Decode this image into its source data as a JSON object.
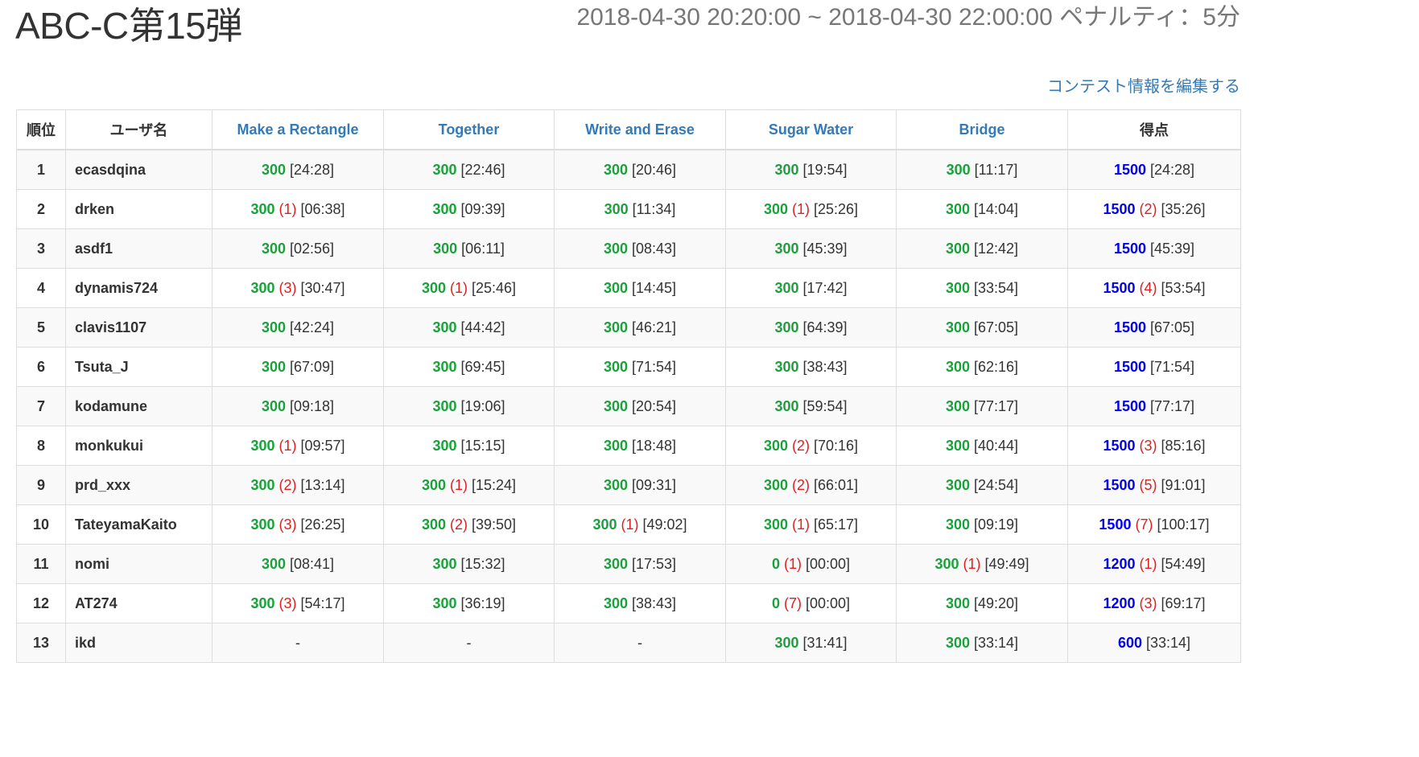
{
  "contest": {
    "title": "ABC-C第15弾",
    "period": "2018-04-30 20:20:00 ~ 2018-04-30 22:00:00 ペナルティ：5分",
    "edit_link": "コンテスト情報を編集する"
  },
  "table": {
    "headers": {
      "rank": "順位",
      "user": "ユーザ名",
      "problems": [
        "Make a Rectangle",
        "Together",
        "Write and Erase",
        "Sugar Water",
        "Bridge"
      ],
      "total": "得点"
    },
    "rows": [
      {
        "rank": "1",
        "user": "ecasdqina",
        "cells": [
          {
            "score": "300",
            "pen": "",
            "time": "[24:28]"
          },
          {
            "score": "300",
            "pen": "",
            "time": "[22:46]"
          },
          {
            "score": "300",
            "pen": "",
            "time": "[20:46]"
          },
          {
            "score": "300",
            "pen": "",
            "time": "[19:54]"
          },
          {
            "score": "300",
            "pen": "",
            "time": "[11:17]"
          }
        ],
        "total": {
          "score": "1500",
          "pen": "",
          "time": "[24:28]"
        }
      },
      {
        "rank": "2",
        "user": "drken",
        "cells": [
          {
            "score": "300",
            "pen": "(1)",
            "time": "[06:38]"
          },
          {
            "score": "300",
            "pen": "",
            "time": "[09:39]"
          },
          {
            "score": "300",
            "pen": "",
            "time": "[11:34]"
          },
          {
            "score": "300",
            "pen": "(1)",
            "time": "[25:26]"
          },
          {
            "score": "300",
            "pen": "",
            "time": "[14:04]"
          }
        ],
        "total": {
          "score": "1500",
          "pen": "(2)",
          "time": "[35:26]"
        }
      },
      {
        "rank": "3",
        "user": "asdf1",
        "cells": [
          {
            "score": "300",
            "pen": "",
            "time": "[02:56]"
          },
          {
            "score": "300",
            "pen": "",
            "time": "[06:11]"
          },
          {
            "score": "300",
            "pen": "",
            "time": "[08:43]"
          },
          {
            "score": "300",
            "pen": "",
            "time": "[45:39]"
          },
          {
            "score": "300",
            "pen": "",
            "time": "[12:42]"
          }
        ],
        "total": {
          "score": "1500",
          "pen": "",
          "time": "[45:39]"
        }
      },
      {
        "rank": "4",
        "user": "dynamis724",
        "cells": [
          {
            "score": "300",
            "pen": "(3)",
            "time": "[30:47]"
          },
          {
            "score": "300",
            "pen": "(1)",
            "time": "[25:46]"
          },
          {
            "score": "300",
            "pen": "",
            "time": "[14:45]"
          },
          {
            "score": "300",
            "pen": "",
            "time": "[17:42]"
          },
          {
            "score": "300",
            "pen": "",
            "time": "[33:54]"
          }
        ],
        "total": {
          "score": "1500",
          "pen": "(4)",
          "time": "[53:54]"
        }
      },
      {
        "rank": "5",
        "user": "clavis1107",
        "cells": [
          {
            "score": "300",
            "pen": "",
            "time": "[42:24]"
          },
          {
            "score": "300",
            "pen": "",
            "time": "[44:42]"
          },
          {
            "score": "300",
            "pen": "",
            "time": "[46:21]"
          },
          {
            "score": "300",
            "pen": "",
            "time": "[64:39]"
          },
          {
            "score": "300",
            "pen": "",
            "time": "[67:05]"
          }
        ],
        "total": {
          "score": "1500",
          "pen": "",
          "time": "[67:05]"
        }
      },
      {
        "rank": "6",
        "user": "Tsuta_J",
        "cells": [
          {
            "score": "300",
            "pen": "",
            "time": "[67:09]"
          },
          {
            "score": "300",
            "pen": "",
            "time": "[69:45]"
          },
          {
            "score": "300",
            "pen": "",
            "time": "[71:54]"
          },
          {
            "score": "300",
            "pen": "",
            "time": "[38:43]"
          },
          {
            "score": "300",
            "pen": "",
            "time": "[62:16]"
          }
        ],
        "total": {
          "score": "1500",
          "pen": "",
          "time": "[71:54]"
        }
      },
      {
        "rank": "7",
        "user": "kodamune",
        "cells": [
          {
            "score": "300",
            "pen": "",
            "time": "[09:18]"
          },
          {
            "score": "300",
            "pen": "",
            "time": "[19:06]"
          },
          {
            "score": "300",
            "pen": "",
            "time": "[20:54]"
          },
          {
            "score": "300",
            "pen": "",
            "time": "[59:54]"
          },
          {
            "score": "300",
            "pen": "",
            "time": "[77:17]"
          }
        ],
        "total": {
          "score": "1500",
          "pen": "",
          "time": "[77:17]"
        }
      },
      {
        "rank": "8",
        "user": "monkukui",
        "cells": [
          {
            "score": "300",
            "pen": "(1)",
            "time": "[09:57]"
          },
          {
            "score": "300",
            "pen": "",
            "time": "[15:15]"
          },
          {
            "score": "300",
            "pen": "",
            "time": "[18:48]"
          },
          {
            "score": "300",
            "pen": "(2)",
            "time": "[70:16]"
          },
          {
            "score": "300",
            "pen": "",
            "time": "[40:44]"
          }
        ],
        "total": {
          "score": "1500",
          "pen": "(3)",
          "time": "[85:16]"
        }
      },
      {
        "rank": "9",
        "user": "prd_xxx",
        "cells": [
          {
            "score": "300",
            "pen": "(2)",
            "time": "[13:14]"
          },
          {
            "score": "300",
            "pen": "(1)",
            "time": "[15:24]"
          },
          {
            "score": "300",
            "pen": "",
            "time": "[09:31]"
          },
          {
            "score": "300",
            "pen": "(2)",
            "time": "[66:01]"
          },
          {
            "score": "300",
            "pen": "",
            "time": "[24:54]"
          }
        ],
        "total": {
          "score": "1500",
          "pen": "(5)",
          "time": "[91:01]"
        }
      },
      {
        "rank": "10",
        "user": "TateyamaKaito",
        "cells": [
          {
            "score": "300",
            "pen": "(3)",
            "time": "[26:25]"
          },
          {
            "score": "300",
            "pen": "(2)",
            "time": "[39:50]"
          },
          {
            "score": "300",
            "pen": "(1)",
            "time": "[49:02]"
          },
          {
            "score": "300",
            "pen": "(1)",
            "time": "[65:17]"
          },
          {
            "score": "300",
            "pen": "",
            "time": "[09:19]"
          }
        ],
        "total": {
          "score": "1500",
          "pen": "(7)",
          "time": "[100:17]"
        }
      },
      {
        "rank": "11",
        "user": "nomi",
        "cells": [
          {
            "score": "300",
            "pen": "",
            "time": "[08:41]"
          },
          {
            "score": "300",
            "pen": "",
            "time": "[15:32]"
          },
          {
            "score": "300",
            "pen": "",
            "time": "[17:53]"
          },
          {
            "score": "0",
            "pen": "(1)",
            "time": "[00:00]"
          },
          {
            "score": "300",
            "pen": "(1)",
            "time": "[49:49]"
          }
        ],
        "total": {
          "score": "1200",
          "pen": "(1)",
          "time": "[54:49]"
        }
      },
      {
        "rank": "12",
        "user": "AT274",
        "cells": [
          {
            "score": "300",
            "pen": "(3)",
            "time": "[54:17]"
          },
          {
            "score": "300",
            "pen": "",
            "time": "[36:19]"
          },
          {
            "score": "300",
            "pen": "",
            "time": "[38:43]"
          },
          {
            "score": "0",
            "pen": "(7)",
            "time": "[00:00]"
          },
          {
            "score": "300",
            "pen": "",
            "time": "[49:20]"
          }
        ],
        "total": {
          "score": "1200",
          "pen": "(3)",
          "time": "[69:17]"
        }
      },
      {
        "rank": "13",
        "user": "ikd",
        "cells": [
          {
            "empty": "-"
          },
          {
            "empty": "-"
          },
          {
            "empty": "-"
          },
          {
            "score": "300",
            "pen": "",
            "time": "[31:41]"
          },
          {
            "score": "300",
            "pen": "",
            "time": "[33:14]"
          }
        ],
        "total": {
          "score": "600",
          "pen": "",
          "time": "[33:14]"
        }
      }
    ]
  },
  "colors": {
    "accepted_score": "#1aa13b",
    "total_score": "#0000ee",
    "penalty": "#e02020",
    "link": "#337ab7"
  }
}
